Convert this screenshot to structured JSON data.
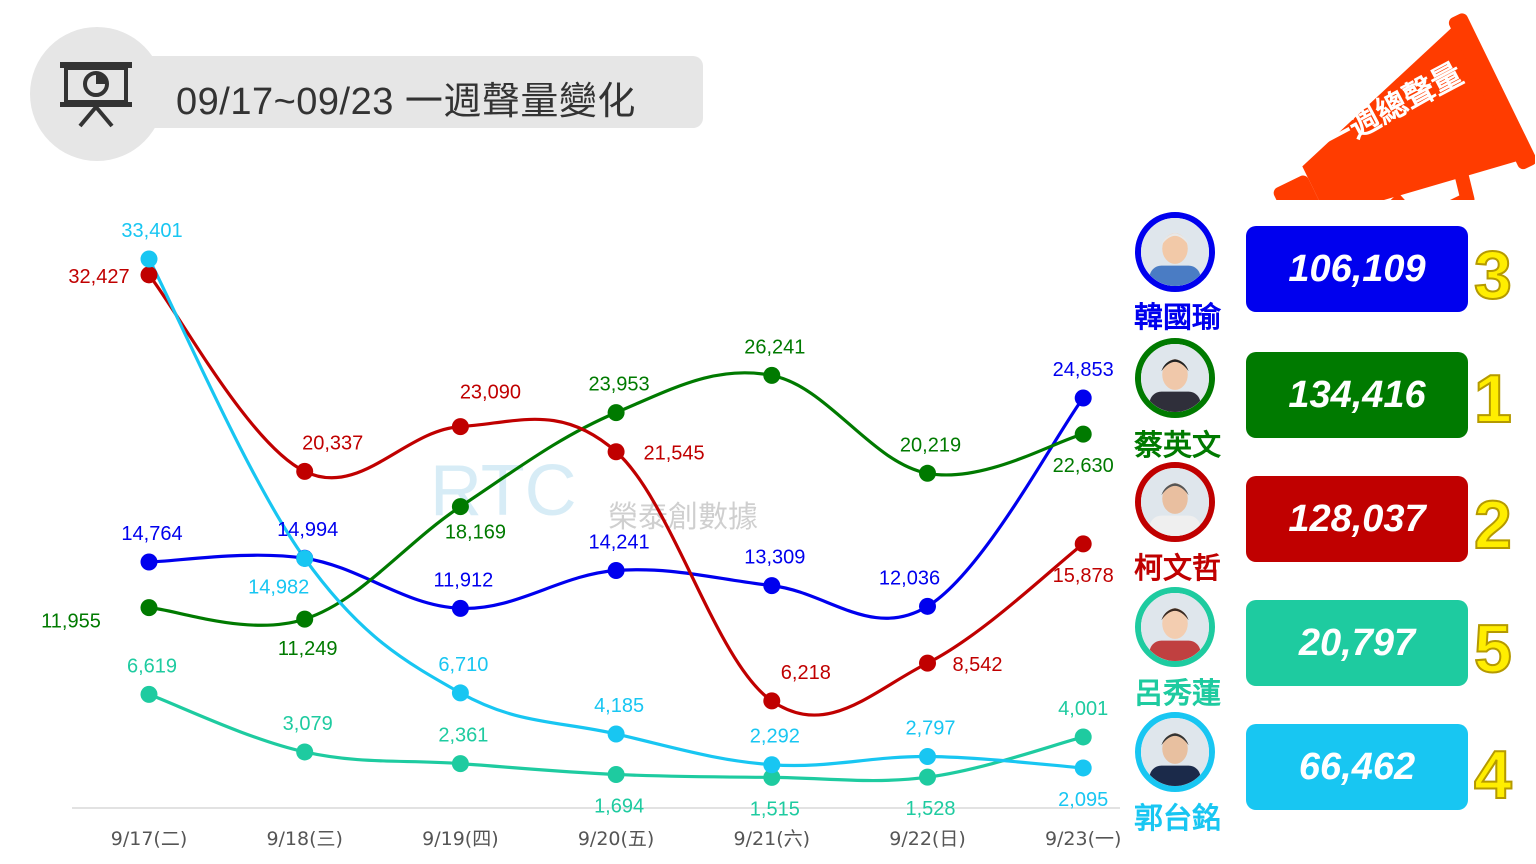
{
  "title": "09/17~09/23 一週聲量變化",
  "megaphone_label": "一週總聲量",
  "watermark": {
    "logo": "RTC",
    "text": "榮泰創數據"
  },
  "chart_data": {
    "type": "line",
    "categories": [
      "9/17(二)",
      "9/18(三)",
      "9/19(四)",
      "9/20(五)",
      "9/21(六)",
      "9/22(日)",
      "9/23(一)"
    ],
    "ylim": [
      0,
      36000
    ],
    "series": [
      {
        "name": "韓國瑜",
        "color": "#0000ee",
        "values": [
          14764,
          14994,
          11912,
          14241,
          13309,
          12036,
          24853
        ],
        "labels": [
          "14,764",
          "14,994",
          "11,912",
          "14,241",
          "13,309",
          "12,036",
          "24,853"
        ]
      },
      {
        "name": "蔡英文",
        "color": "#007a00",
        "values": [
          11955,
          11249,
          18169,
          23953,
          26241,
          20219,
          22630
        ],
        "labels": [
          "11,955",
          "11,249",
          "18,169",
          "23,953",
          "26,241",
          "20,219",
          "22,630"
        ]
      },
      {
        "name": "柯文哲",
        "color": "#c00000",
        "values": [
          32427,
          20337,
          23090,
          21545,
          6218,
          8542,
          15878
        ],
        "labels": [
          "32,427",
          "20,337",
          "23,090",
          "21,545",
          "6,218",
          "8,542",
          "15,878"
        ]
      },
      {
        "name": "呂秀蓮",
        "color": "#1ecba0",
        "values": [
          6619,
          3079,
          2361,
          1694,
          1515,
          1528,
          4001
        ],
        "labels": [
          "6,619",
          "3,079",
          "2,361",
          "1,694",
          "1,515",
          "1,528",
          "4,001"
        ]
      },
      {
        "name": "郭台銘",
        "color": "#18c6f2",
        "values": [
          33401,
          14982,
          6710,
          4185,
          2292,
          2797,
          2095
        ],
        "labels": [
          "33,401",
          "14,982",
          "6,710",
          "4,185",
          "2,292",
          "2,797",
          "2,095"
        ]
      }
    ]
  },
  "candidates": [
    {
      "name": "韓國瑜",
      "total": "106,109",
      "rank": "3",
      "color": "#0000ee"
    },
    {
      "name": "蔡英文",
      "total": "134,416",
      "rank": "1",
      "color": "#007a00"
    },
    {
      "name": "柯文哲",
      "total": "128,037",
      "rank": "2",
      "color": "#c00000"
    },
    {
      "name": "呂秀蓮",
      "total": "20,797",
      "rank": "5",
      "color": "#1ecba0"
    },
    {
      "name": "郭台銘",
      "total": "66,462",
      "rank": "4",
      "color": "#18c6f2"
    }
  ]
}
